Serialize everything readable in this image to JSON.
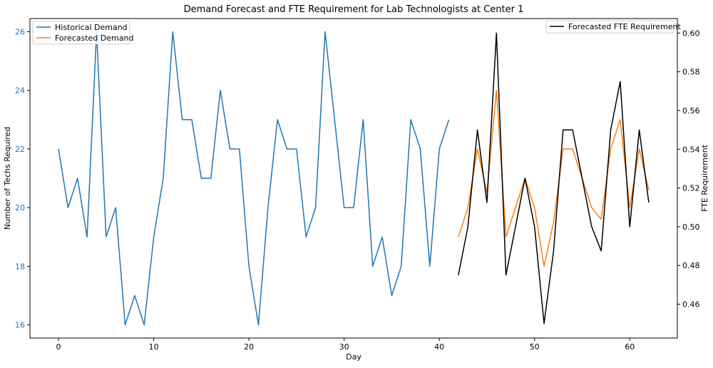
{
  "chart_data": {
    "type": "line",
    "title": "Demand Forecast and FTE Requirement for Lab Technologists at Center 1",
    "xlabel": "Day",
    "ylabel_left": "Number of Techs Required",
    "ylabel_right": "FTE Requirement",
    "xlim": [
      -3,
      65
    ],
    "ylim_left": [
      15.55,
      26.45
    ],
    "ylim_right": [
      0.4425,
      0.6075
    ],
    "x_ticks": [
      0,
      10,
      20,
      30,
      40,
      50,
      60
    ],
    "y_ticks_left": [
      16,
      18,
      20,
      22,
      24,
      26
    ],
    "y_ticks_right": [
      0.46,
      0.48,
      0.5,
      0.52,
      0.54,
      0.56,
      0.58,
      0.6
    ],
    "left_axis_color": "#1f77b4",
    "grid": false,
    "series": [
      {
        "name": "Historical Demand",
        "axis": "left",
        "color": "#1f77b4",
        "x": [
          0,
          1,
          2,
          3,
          4,
          5,
          6,
          7,
          8,
          9,
          10,
          11,
          12,
          13,
          14,
          15,
          16,
          17,
          18,
          19,
          20,
          21,
          22,
          23,
          24,
          25,
          26,
          27,
          28,
          29,
          30,
          31,
          32,
          33,
          34,
          35,
          36,
          37,
          38,
          39,
          40,
          41
        ],
        "y": [
          22,
          20,
          21,
          19,
          26,
          19,
          20,
          16,
          17,
          16,
          19,
          21,
          26,
          23,
          23,
          21,
          21,
          24,
          22,
          22,
          18,
          16,
          20,
          23,
          22,
          22,
          19,
          20,
          26,
          23,
          20,
          20,
          23,
          18,
          19,
          17,
          18,
          23,
          22,
          18,
          22,
          23
        ]
      },
      {
        "name": "Forecasted Demand",
        "axis": "left",
        "color": "#ff7f0e",
        "x": [
          42,
          43,
          44,
          45,
          46,
          47,
          48,
          49,
          50,
          51,
          52,
          53,
          54,
          55,
          56,
          57,
          58,
          59,
          60,
          61,
          62
        ],
        "y": [
          19,
          20,
          22,
          20.5,
          24,
          19,
          20,
          21,
          20,
          18,
          19.5,
          22,
          22,
          21,
          20,
          19.6,
          22,
          23,
          20,
          22,
          20.6
        ]
      },
      {
        "name": "Forecasted FTE Requirement",
        "axis": "right",
        "color": "#000000",
        "x": [
          42,
          43,
          44,
          45,
          46,
          47,
          48,
          49,
          50,
          51,
          52,
          53,
          54,
          55,
          56,
          57,
          58,
          59,
          60,
          61,
          62
        ],
        "y": [
          0.475,
          0.5,
          0.55,
          0.5125,
          0.6,
          0.475,
          0.5,
          0.525,
          0.5,
          0.45,
          0.4875,
          0.55,
          0.55,
          0.525,
          0.5,
          0.4875,
          0.55,
          0.575,
          0.5,
          0.55,
          0.5125
        ]
      }
    ],
    "legend_left": {
      "placement": "upper-left",
      "entries": [
        "Historical Demand",
        "Forecasted Demand"
      ]
    },
    "legend_right": {
      "placement": "upper-right",
      "entries": [
        "Forecasted FTE Requirement"
      ]
    }
  }
}
